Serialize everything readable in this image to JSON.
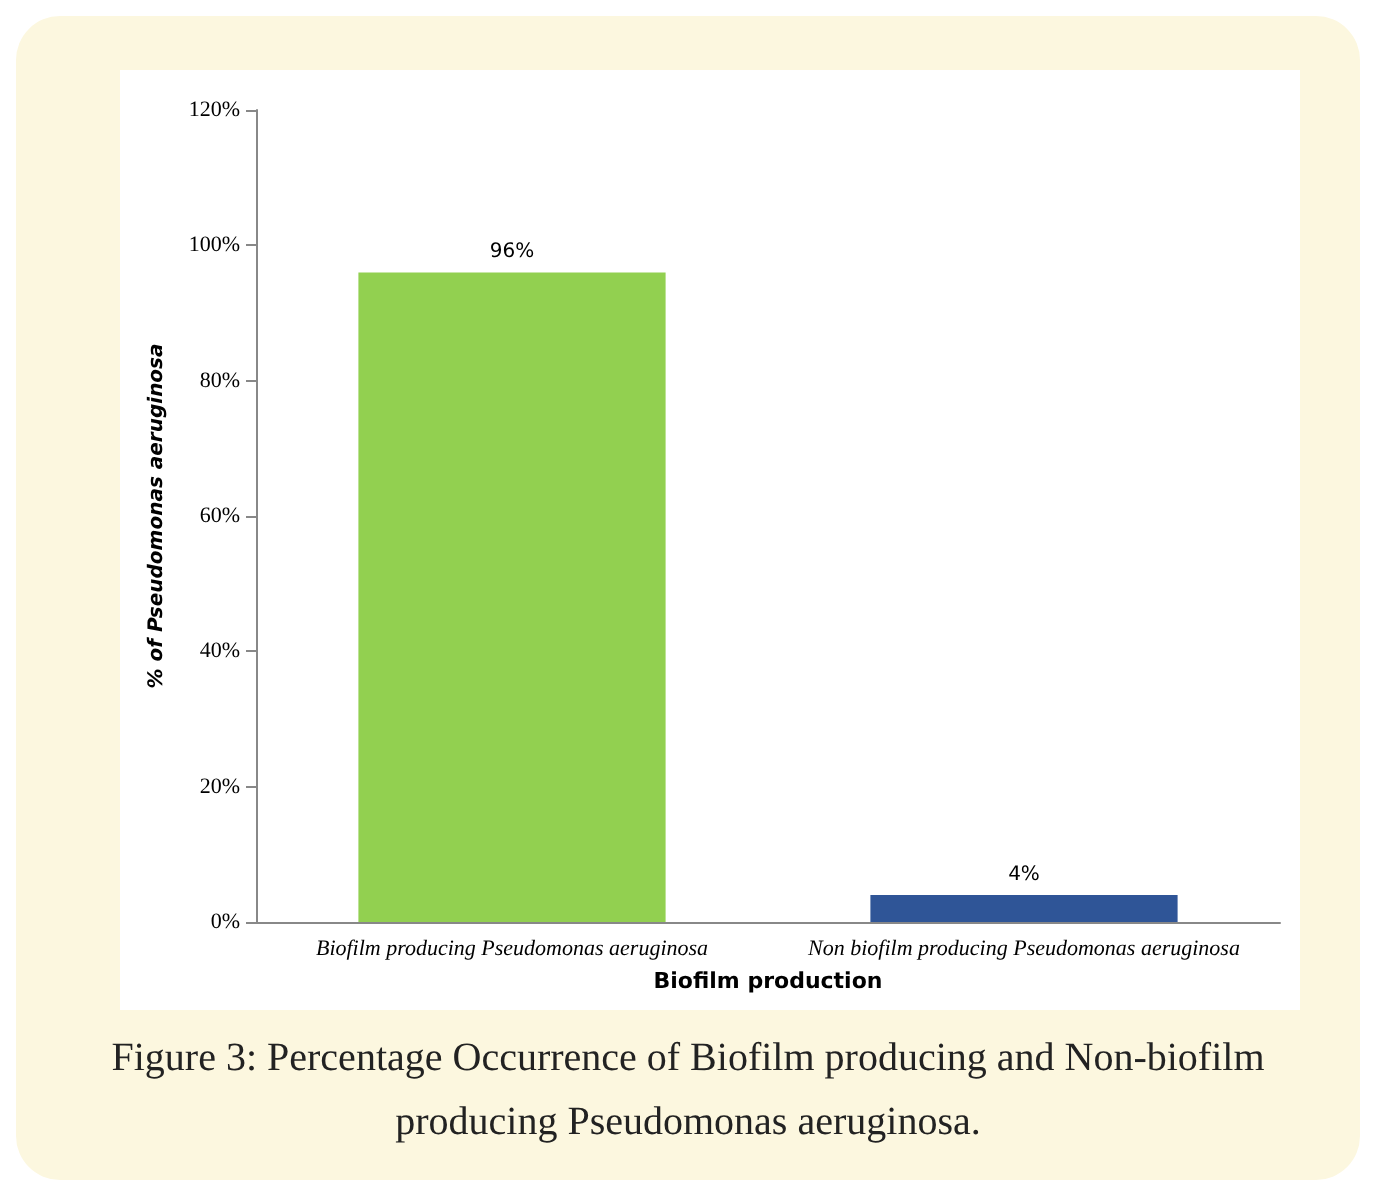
{
  "chart_data": {
    "type": "bar",
    "title": "Figure 3: Percentage Occurrence of Biofilm producing and Non-biofilm producing Pseudomonas aeruginosa.",
    "xlabel": "Biofilm production",
    "ylabel": "% of Pseudomonas aeruginosa",
    "categories": [
      "Biofilm producing Pseudomonas aeruginosa",
      "Non biofilm producing Pseudomonas aeruginosa"
    ],
    "values": [
      96,
      4
    ],
    "colors": [
      "#92d050",
      "#2f5597"
    ],
    "value_labels": [
      "96%",
      "4%"
    ],
    "ylim": [
      0,
      120
    ],
    "yticks": [
      {
        "value": 0,
        "label": "0%"
      },
      {
        "value": 20,
        "label": "20%"
      },
      {
        "value": 40,
        "label": "40%"
      },
      {
        "value": 60,
        "label": "60%"
      },
      {
        "value": 80,
        "label": "80%"
      },
      {
        "value": 100,
        "label": "100%"
      },
      {
        "value": 120,
        "label": "120%"
      }
    ],
    "grid": false
  }
}
